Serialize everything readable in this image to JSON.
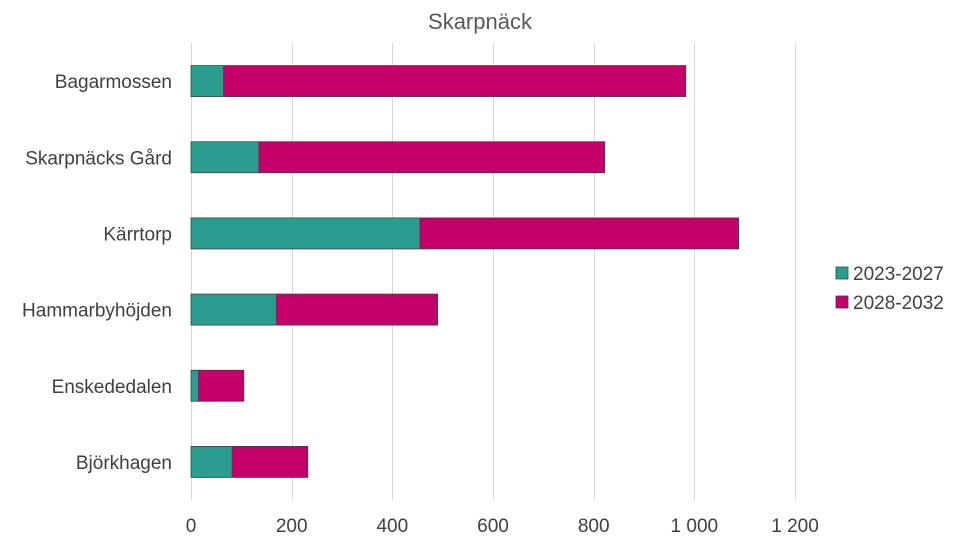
{
  "chart_data": {
    "type": "bar",
    "orientation": "horizontal",
    "stacked": true,
    "title": "Skarpnäck",
    "xlabel": "",
    "ylabel": "",
    "categories": [
      "Bagarmossen",
      "Skarpnäcks Gård",
      "Kärrtorp",
      "Hammarbyhöjden",
      "Enskededalen",
      "Björkhagen"
    ],
    "series": [
      {
        "name": "2023-2027",
        "color": "#2a9d8f",
        "values": [
          65,
          135,
          455,
          170,
          15,
          82
        ]
      },
      {
        "name": "2028-2032",
        "color": "#c5006a",
        "values": [
          918,
          687,
          633,
          320,
          90,
          150
        ]
      }
    ],
    "xlim": [
      0,
      1200
    ],
    "xticks": [
      0,
      200,
      400,
      600,
      800,
      1000,
      1200
    ],
    "xtick_labels": [
      "0",
      "200",
      "400",
      "600",
      "800",
      "1 000",
      "1 200"
    ],
    "grid": "vertical",
    "legend_position": "right"
  }
}
